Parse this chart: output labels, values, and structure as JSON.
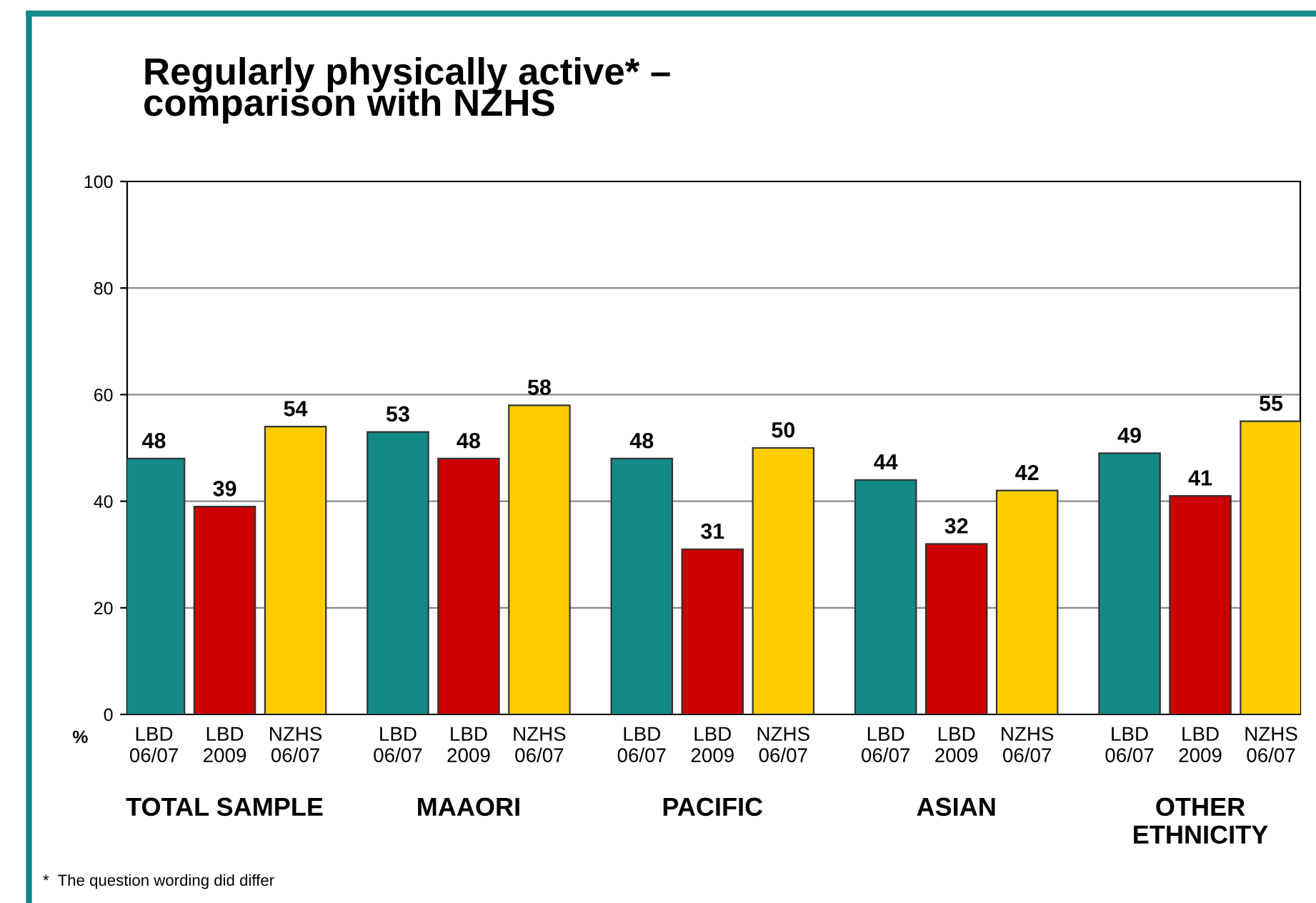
{
  "chart_data": {
    "type": "bar",
    "title": "Regularly physically active* –\ncomparison with NZHS",
    "ylabel": "%",
    "categories": [
      "TOTAL SAMPLE",
      "MAAORI",
      "PACIFIC",
      "ASIAN",
      "OTHER ETHNICITY"
    ],
    "series": [
      {
        "name": "LBD 06/07",
        "color": "#138a87",
        "values": [
          48,
          53,
          48,
          44,
          49
        ]
      },
      {
        "name": "LBD 2009",
        "color": "#cc0000",
        "values": [
          39,
          48,
          31,
          32,
          41
        ]
      },
      {
        "name": "NZHS 06/07",
        "color": "#ffcc00",
        "values": [
          54,
          58,
          50,
          42,
          55
        ]
      }
    ],
    "ylim": [
      0,
      100
    ],
    "yticks": [
      0,
      20,
      40,
      60,
      80,
      100
    ],
    "grid": "y",
    "data_labels": true,
    "annotations": [
      "*  The question wording did differ"
    ]
  }
}
